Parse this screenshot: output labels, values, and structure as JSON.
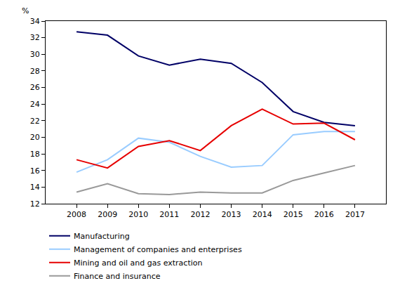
{
  "chart_data": {
    "type": "line",
    "y_label": "%",
    "x": [
      2008,
      2009,
      2010,
      2011,
      2012,
      2013,
      2014,
      2015,
      2016,
      2017
    ],
    "xlim": [
      2007,
      2018
    ],
    "xticks": [
      2008,
      2009,
      2010,
      2011,
      2012,
      2013,
      2014,
      2015,
      2016,
      2017
    ],
    "ylim": [
      12,
      34
    ],
    "yticks": [
      12,
      14,
      16,
      18,
      20,
      22,
      24,
      26,
      28,
      30,
      32,
      34
    ],
    "grid": false,
    "legend": "bottom",
    "series": [
      {
        "name": "Manufacturing",
        "color": "#000066",
        "values": [
          32.7,
          32.3,
          29.8,
          28.7,
          29.4,
          28.9,
          26.6,
          23.1,
          21.8,
          21.4
        ]
      },
      {
        "name": "Management of companies and enterprises",
        "color": "#99ccff",
        "values": [
          15.8,
          17.3,
          19.9,
          19.4,
          17.7,
          16.4,
          16.6,
          20.3,
          20.7,
          20.7
        ]
      },
      {
        "name": "Mining and oil and gas extraction",
        "color": "#e60000",
        "values": [
          17.3,
          16.3,
          18.9,
          19.6,
          18.4,
          21.4,
          23.4,
          21.6,
          21.7,
          19.7
        ]
      },
      {
        "name": "Finance and insurance",
        "color": "#999999",
        "values": [
          13.4,
          14.4,
          13.2,
          13.1,
          13.4,
          13.3,
          13.3,
          14.8,
          15.7,
          16.6
        ]
      }
    ]
  }
}
